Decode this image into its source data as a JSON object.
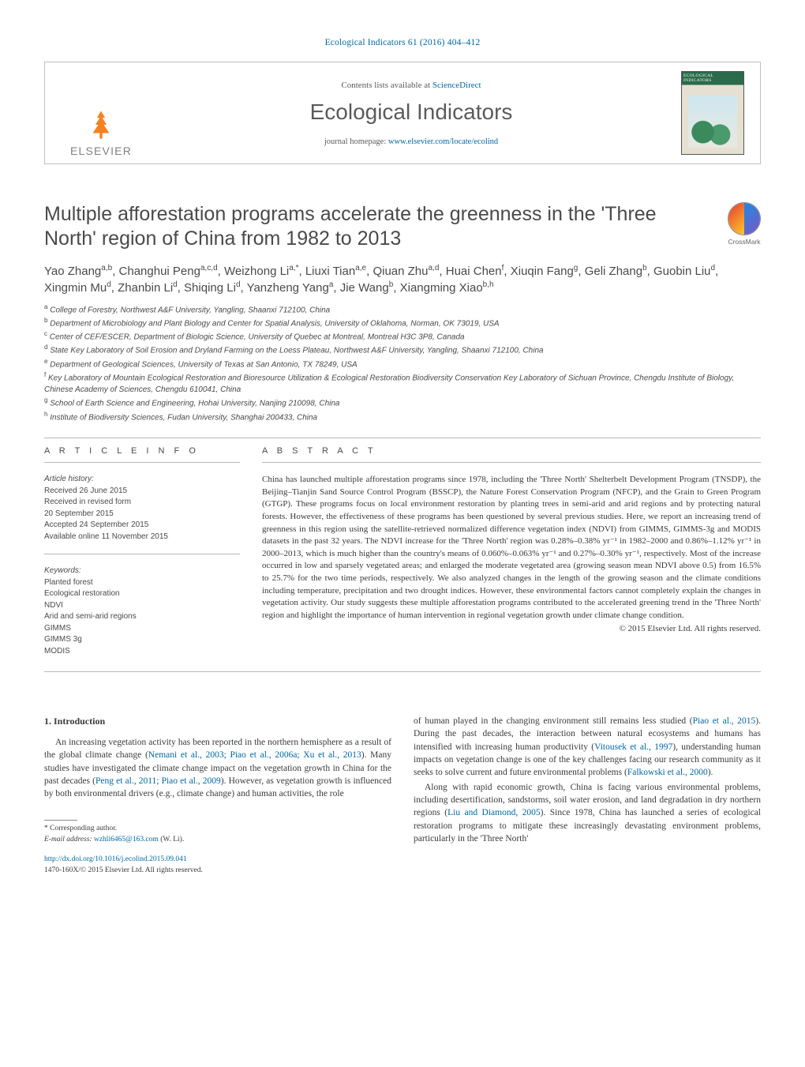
{
  "top_link": "Ecological Indicators 61 (2016) 404–412",
  "header": {
    "publisher": "ELSEVIER",
    "contents_prefix": "Contents lists available at ",
    "contents_link": "ScienceDirect",
    "journal": "Ecological Indicators",
    "homepage_prefix": "journal homepage: ",
    "homepage_link": "www.elsevier.com/locate/ecolind",
    "cover_title": "ECOLOGICAL INDICATORS"
  },
  "crossmark": "CrossMark",
  "title": "Multiple afforestation programs accelerate the greenness in the 'Three North' region of China from 1982 to 2013",
  "authors_html": "Yao Zhang<sup>a,b</sup>, Changhui Peng<sup>a,c,d</sup>, Weizhong Li<sup>a,*</sup>, Liuxi Tian<sup>a,e</sup>, Qiuan Zhu<sup>a,d</sup>, Huai Chen<sup>f</sup>, Xiuqin Fang<sup>g</sup>, Geli Zhang<sup>b</sup>, Guobin Liu<sup>d</sup>, Xingmin Mu<sup>d</sup>, Zhanbin Li<sup>d</sup>, Shiqing Li<sup>d</sup>, Yanzheng Yang<sup>a</sup>, Jie Wang<sup>b</sup>, Xiangming Xiao<sup>b,h</sup>",
  "affiliations": [
    {
      "sup": "a",
      "text": "College of Forestry, Northwest A&F University, Yangling, Shaanxi 712100, China"
    },
    {
      "sup": "b",
      "text": "Department of Microbiology and Plant Biology and Center for Spatial Analysis, University of Oklahoma, Norman, OK 73019, USA"
    },
    {
      "sup": "c",
      "text": "Center of CEF/ESCER, Department of Biologic Science, University of Quebec at Montreal, Montreal H3C 3P8, Canada"
    },
    {
      "sup": "d",
      "text": "State Key Laboratory of Soil Erosion and Dryland Farming on the Loess Plateau, Northwest A&F University, Yangling, Shaanxi 712100, China"
    },
    {
      "sup": "e",
      "text": "Department of Geological Sciences, University of Texas at San Antonio, TX 78249, USA"
    },
    {
      "sup": "f",
      "text": "Key Laboratory of Mountain Ecological Restoration and Bioresource Utilization & Ecological Restoration Biodiversity Conservation Key Laboratory of Sichuan Province, Chengdu Institute of Biology, Chinese Academy of Sciences, Chengdu 610041, China"
    },
    {
      "sup": "g",
      "text": "School of Earth Science and Engineering, Hohai University, Nanjing 210098, China"
    },
    {
      "sup": "h",
      "text": "Institute of Biodiversity Sciences, Fudan University, Shanghai 200433, China"
    }
  ],
  "info_head": "A R T I C L E   I N F O",
  "abstract_head": "A B S T R A C T",
  "article_history": {
    "title": "Article history:",
    "lines": [
      "Received 26 June 2015",
      "Received in revised form",
      "20 September 2015",
      "Accepted 24 September 2015",
      "Available online 11 November 2015"
    ]
  },
  "keywords": {
    "title": "Keywords:",
    "items": [
      "Planted forest",
      "Ecological restoration",
      "NDVI",
      "Arid and semi-arid regions",
      "GIMMS",
      "GIMMS 3g",
      "MODIS"
    ]
  },
  "abstract": "China has launched multiple afforestation programs since 1978, including the 'Three North' Shelterbelt Development Program (TNSDP), the Beijing–Tianjin Sand Source Control Program (BSSCP), the Nature Forest Conservation Program (NFCP), and the Grain to Green Program (GTGP). These programs focus on local environment restoration by planting trees in semi-arid and arid regions and by protecting natural forests. However, the effectiveness of these programs has been questioned by several previous studies. Here, we report an increasing trend of greenness in this region using the satellite-retrieved normalized difference vegetation index (NDVI) from GIMMS, GIMMS-3g and MODIS datasets in the past 32 years. The NDVI increase for the 'Three North' region was 0.28%–0.38% yr⁻¹ in 1982–2000 and 0.86%–1.12% yr⁻¹ in 2000–2013, which is much higher than the country's means of 0.060%–0.063% yr⁻¹ and 0.27%–0.30% yr⁻¹, respectively. Most of the increase occurred in low and sparsely vegetated areas; and enlarged the moderate vegetated area (growing season mean NDVI above 0.5) from 16.5% to 25.7% for the two time periods, respectively. We also analyzed changes in the length of the growing season and the climate conditions including temperature, precipitation and two drought indices. However, these environmental factors cannot completely explain the changes in vegetation activity. Our study suggests these multiple afforestation programs contributed to the accelerated greening trend in the 'Three North' region and highlight the importance of human intervention in regional vegetation growth under climate change condition.",
  "copyright": "© 2015 Elsevier Ltd. All rights reserved.",
  "intro_head": "1.  Introduction",
  "intro_col1_p1_a": "An increasing vegetation activity has been reported in the northern hemisphere as a result of the global climate change (",
  "intro_col1_p1_link1": "Nemani et al., 2003; Piao et al., 2006a; Xu et al., 2013",
  "intro_col1_p1_b": "). Many studies have investigated the climate change impact on the vegetation growth in China for the past decades (",
  "intro_col1_p1_link2": "Peng et al., 2011; Piao et al., 2009",
  "intro_col1_p1_c": "). However, as vegetation growth is influenced by both environmental drivers (e.g., climate change) and human activities, the role",
  "intro_col2_p1_a": "of human played in the changing environment still remains less studied (",
  "intro_col2_p1_link1": "Piao et al., 2015",
  "intro_col2_p1_b": "). During the past decades, the interaction between natural ecosystems and humans has intensified with increasing human productivity (",
  "intro_col2_p1_link2": "Vitousek et al., 1997",
  "intro_col2_p1_c": "), understanding human impacts on vegetation change is one of the key challenges facing our research community as it seeks to solve current and future environmental problems (",
  "intro_col2_p1_link3": "Falkowski et al., 2000",
  "intro_col2_p1_d": ").",
  "intro_col2_p2_a": "Along with rapid economic growth, China is facing various environmental problems, including desertification, sandstorms, soil water erosion, and land degradation in dry northern regions (",
  "intro_col2_p2_link1": "Liu and Diamond, 2005",
  "intro_col2_p2_b": "). Since 1978, China has launched a series of ecological restoration programs to mitigate these increasingly devastating environment problems, particularly in the 'Three North'",
  "footer": {
    "corr_label": "* Corresponding author.",
    "email_label": "E-mail address: ",
    "email": "wzhli6465@163.com",
    "email_suffix": " (W. Li).",
    "doi": "http://dx.doi.org/10.1016/j.ecolind.2015.09.041",
    "issn_line": "1470-160X/© 2015 Elsevier Ltd. All rights reserved."
  },
  "colors": {
    "link": "#0066a1",
    "orange": "#f58220",
    "gray_text": "#4a4a4a",
    "rule": "#b8b8b8"
  }
}
